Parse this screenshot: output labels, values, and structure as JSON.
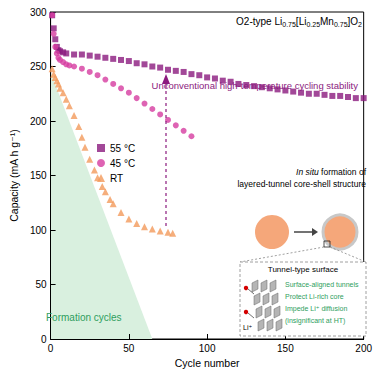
{
  "chart_data": {
    "type": "scatter",
    "title": [
      {
        "text": "O2-type Li"
      },
      {
        "sub": "0.75"
      },
      {
        "text": "[Li"
      },
      {
        "sub": "0.25"
      },
      {
        "text": "Mn"
      },
      {
        "sub": "0.75"
      },
      {
        "text": "]O"
      },
      {
        "sub": "2"
      }
    ],
    "x_label": "Cycle number",
    "y_label": "Capacity (mA h g⁻¹)",
    "xlim": [
      0,
      200
    ],
    "xticks": [
      0,
      50,
      100,
      150,
      200
    ],
    "ylim": [
      0,
      300
    ],
    "yticks": [
      0,
      50,
      100,
      150,
      200,
      250,
      300
    ],
    "grid": false,
    "legend": "left",
    "series": [
      {
        "name": "Formation cycles",
        "type": "area",
        "color": "#d9f0df",
        "x": [
          0,
          65
        ],
        "values": [
          245,
          0
        ]
      },
      {
        "name": "55 °C",
        "color": "#8b1a7e",
        "marker": "square",
        "x": [
          1,
          2,
          3,
          4,
          5,
          6,
          8,
          10,
          15,
          20,
          25,
          30,
          35,
          40,
          45,
          50,
          55,
          60,
          65,
          70,
          75,
          80,
          85,
          90,
          95,
          100,
          105,
          110,
          115,
          120,
          125,
          130,
          135,
          140,
          145,
          150,
          155,
          160,
          165,
          170,
          175,
          180,
          185,
          190,
          195,
          200
        ],
        "values": [
          297,
          285,
          275,
          268,
          265,
          264,
          263,
          262,
          261,
          261,
          260,
          259,
          258,
          257,
          256,
          255,
          253,
          252,
          250,
          249,
          247,
          246,
          245,
          243,
          242,
          240,
          239,
          237,
          236,
          234,
          233,
          232,
          231,
          230,
          229,
          228,
          227,
          226,
          225,
          225,
          224,
          223,
          223,
          222,
          221,
          221
        ]
      },
      {
        "name": "45 °C",
        "color": "#d63ca0",
        "marker": "circle",
        "x": [
          1,
          2,
          3,
          4,
          5,
          6,
          8,
          10,
          12,
          15,
          20,
          25,
          30,
          35,
          40,
          45,
          50,
          55,
          60,
          65,
          70,
          75,
          80,
          85,
          90
        ],
        "values": [
          297,
          280,
          268,
          262,
          258,
          256,
          254,
          252,
          251,
          250,
          248,
          245,
          242,
          238,
          234,
          230,
          226,
          221,
          216,
          211,
          206,
          201,
          196,
          191,
          186
        ]
      },
      {
        "name": "RT",
        "color": "#f39a5b",
        "marker": "triangle",
        "x": [
          1,
          2,
          3,
          4,
          5,
          6,
          8,
          10,
          12,
          15,
          18,
          20,
          22,
          25,
          28,
          30,
          33,
          35,
          38,
          40,
          45,
          50,
          55,
          60,
          65,
          70,
          75,
          78
        ],
        "values": [
          248,
          243,
          240,
          237,
          234,
          230,
          226,
          220,
          214,
          205,
          195,
          185,
          176,
          165,
          155,
          148,
          140,
          135,
          128,
          124,
          116,
          110,
          106,
          103,
          101,
          99,
          98,
          97
        ]
      }
    ],
    "annotations": {
      "stability": "Unconventional high-temperature cycling stability",
      "core_shell": {
        "italic": "In situ",
        "line1": " formation of",
        "line2": "layered-tunnel core-shell structure"
      },
      "inset": {
        "title": "Tunnel-type surface",
        "lines": [
          "Surface-aligned tunnels",
          "Protect Li-rich core",
          "Impede Li⁺ diffusion",
          "(insignificant at HT)"
        ],
        "ion": "Li⁺"
      }
    }
  }
}
